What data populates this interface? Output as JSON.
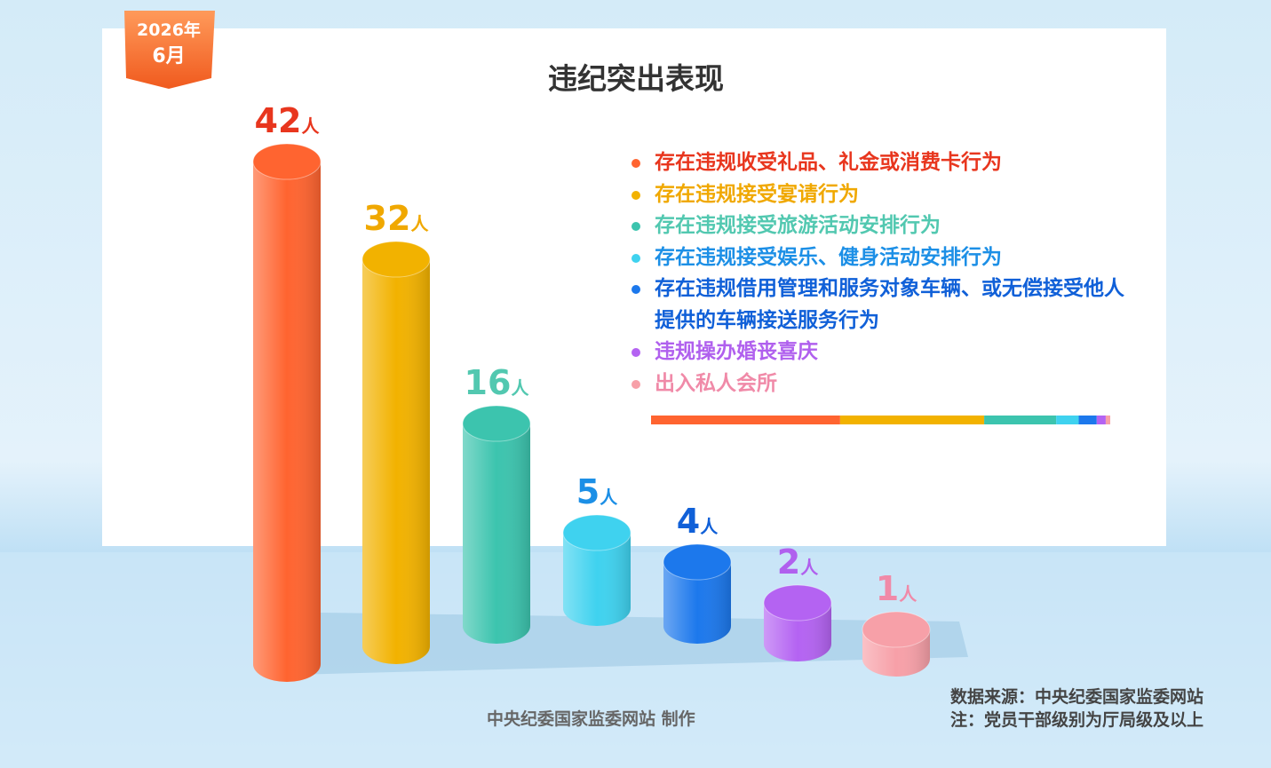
{
  "chart_data": {
    "type": "cylinder-bar",
    "badge": {
      "year": "2026年",
      "month": "6月"
    },
    "title": "违纪突出表现",
    "unit": "人",
    "categories": [
      "存在违规收受礼品、礼金或消费卡行为",
      "存在违规接受宴请行为",
      "存在违规接受旅游活动安排行为",
      "存在违规接受娱乐、健身活动安排行为",
      "存在违规借用管理和服务对象车辆、或无偿接受他人提供的车辆接送服务行为",
      "违规操办婚丧喜庆",
      "出入私人会所"
    ],
    "values": [
      42,
      32,
      16,
      5,
      4,
      2,
      1
    ],
    "colors": [
      "#ff6430",
      "#f2b200",
      "#3cc4ae",
      "#3fd2ef",
      "#1c78ec",
      "#b463f2",
      "#f7a0a8"
    ],
    "label_colors": [
      "#e8361e",
      "#f0a800",
      "#52c8b0",
      "#1c8fe6",
      "#1060d8",
      "#b060ee",
      "#f08aa8"
    ],
    "credit": "中央纪委国家监委网站 制作",
    "source": "数据来源：中央纪委国家监委网站",
    "note": "注：党员干部级别为厅局级及以上"
  }
}
